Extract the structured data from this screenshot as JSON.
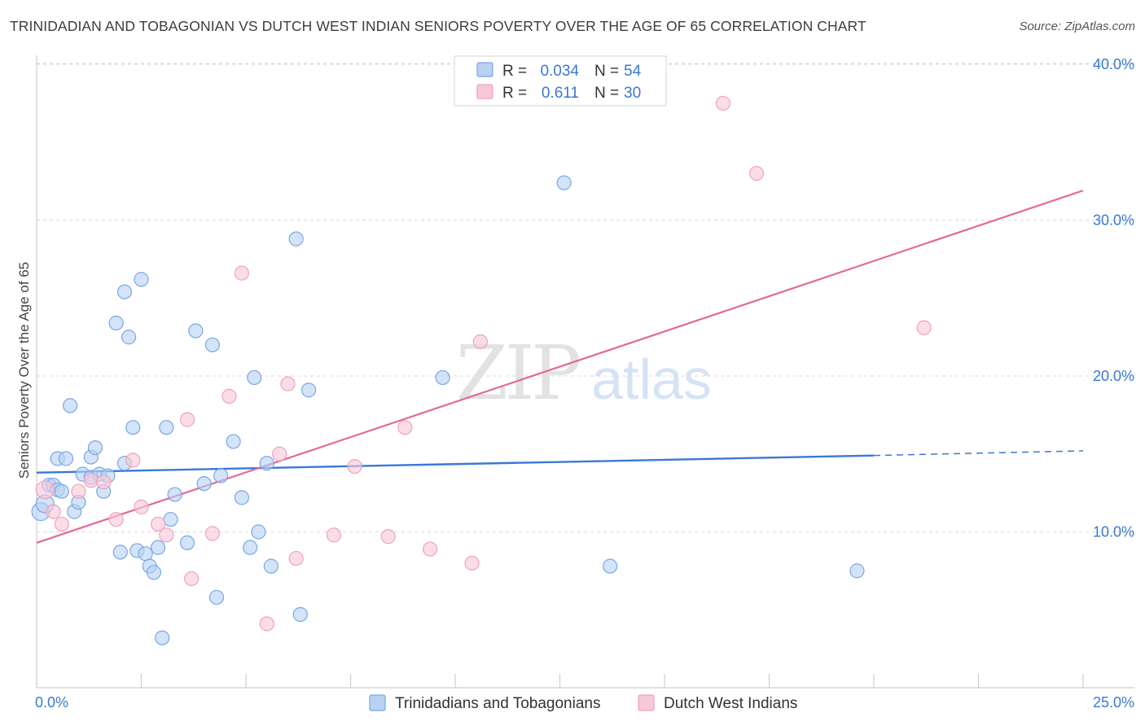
{
  "chart_data": {
    "type": "scatter",
    "title": "TRINIDADIAN AND TOBAGONIAN VS DUTCH WEST INDIAN SENIORS POVERTY OVER THE AGE OF 65 CORRELATION CHART",
    "source": "Source: ZipAtlas.com",
    "ylabel": "Seniors Poverty Over the Age of 65",
    "xlim": [
      0,
      25
    ],
    "ylim": [
      0,
      40
    ],
    "x_tick_labels": [
      "0.0%",
      "25.0%"
    ],
    "y_ticks": [
      10,
      20,
      30,
      40
    ],
    "y_tick_labels": [
      "10.0%",
      "20.0%",
      "30.0%",
      "40.0%"
    ],
    "grid": true,
    "legend_position": "top-center",
    "watermark": "ZIPatlas",
    "colors": {
      "blue": "#3a78d6",
      "pink": "#e2699a",
      "blue_fill": "#b8d2f3",
      "pink_fill": "#f8c8d9",
      "axis_text": "#3a78d6"
    },
    "legend": [
      {
        "r_label": "R =",
        "r_value": "0.034",
        "n_label": "N =",
        "n_value": "54"
      },
      {
        "r_label": "R =",
        "r_value": "0.611",
        "n_label": "N =",
        "n_value": "30"
      }
    ],
    "series": [
      {
        "name": "Trinidadians and Tobagonians",
        "color": "#3a78d6",
        "trend": {
          "x": [
            0,
            20
          ],
          "y": [
            13.8,
            14.9
          ],
          "dashed_to_x": 25,
          "dashed_to_y": 15.2
        },
        "points": [
          [
            0.1,
            11.3
          ],
          [
            0.2,
            11.8
          ],
          [
            0.3,
            13.0
          ],
          [
            0.4,
            13.0
          ],
          [
            0.5,
            14.7
          ],
          [
            0.5,
            12.7
          ],
          [
            0.6,
            12.6
          ],
          [
            0.7,
            14.7
          ],
          [
            0.8,
            18.1
          ],
          [
            0.9,
            11.3
          ],
          [
            1.0,
            11.9
          ],
          [
            1.1,
            13.7
          ],
          [
            1.3,
            14.8
          ],
          [
            1.3,
            13.5
          ],
          [
            1.4,
            15.4
          ],
          [
            1.5,
            13.7
          ],
          [
            1.6,
            12.6
          ],
          [
            1.7,
            13.6
          ],
          [
            1.9,
            23.4
          ],
          [
            2.0,
            8.7
          ],
          [
            2.1,
            25.4
          ],
          [
            2.1,
            14.4
          ],
          [
            2.2,
            22.5
          ],
          [
            2.3,
            16.7
          ],
          [
            2.4,
            8.8
          ],
          [
            2.5,
            26.2
          ],
          [
            2.6,
            8.6
          ],
          [
            2.7,
            7.8
          ],
          [
            2.8,
            7.4
          ],
          [
            2.9,
            9.0
          ],
          [
            3.1,
            16.7
          ],
          [
            3.2,
            10.8
          ],
          [
            3.3,
            12.4
          ],
          [
            3.6,
            9.3
          ],
          [
            3.8,
            22.9
          ],
          [
            4.0,
            13.1
          ],
          [
            4.2,
            22.0
          ],
          [
            4.3,
            5.8
          ],
          [
            4.4,
            13.6
          ],
          [
            4.7,
            15.8
          ],
          [
            4.9,
            12.2
          ],
          [
            5.1,
            9.0
          ],
          [
            5.2,
            19.9
          ],
          [
            5.3,
            10.0
          ],
          [
            5.5,
            14.4
          ],
          [
            5.6,
            7.8
          ],
          [
            6.2,
            28.8
          ],
          [
            6.3,
            4.7
          ],
          [
            6.5,
            19.1
          ],
          [
            3.0,
            3.2
          ],
          [
            9.7,
            19.9
          ],
          [
            12.6,
            32.4
          ],
          [
            13.7,
            7.8
          ],
          [
            19.6,
            7.5
          ]
        ]
      },
      {
        "name": "Dutch West Indians",
        "color": "#e2699a",
        "trend": {
          "x": [
            0,
            25
          ],
          "y": [
            9.3,
            31.9
          ]
        },
        "points": [
          [
            0.2,
            12.7
          ],
          [
            0.4,
            11.3
          ],
          [
            0.6,
            10.5
          ],
          [
            1.0,
            12.6
          ],
          [
            1.3,
            13.3
          ],
          [
            1.6,
            13.2
          ],
          [
            1.9,
            10.8
          ],
          [
            2.3,
            14.6
          ],
          [
            2.5,
            11.6
          ],
          [
            2.9,
            10.5
          ],
          [
            3.1,
            9.8
          ],
          [
            3.6,
            17.2
          ],
          [
            3.7,
            7.0
          ],
          [
            4.2,
            9.9
          ],
          [
            4.6,
            18.7
          ],
          [
            4.9,
            26.6
          ],
          [
            5.5,
            4.1
          ],
          [
            5.8,
            15.0
          ],
          [
            6.0,
            19.5
          ],
          [
            6.2,
            8.3
          ],
          [
            7.1,
            9.8
          ],
          [
            7.6,
            14.2
          ],
          [
            8.4,
            9.7
          ],
          [
            8.8,
            16.7
          ],
          [
            9.4,
            8.9
          ],
          [
            10.6,
            22.2
          ],
          [
            10.4,
            8.0
          ],
          [
            16.4,
            37.5
          ],
          [
            17.2,
            33.0
          ],
          [
            21.2,
            23.1
          ]
        ]
      }
    ]
  }
}
